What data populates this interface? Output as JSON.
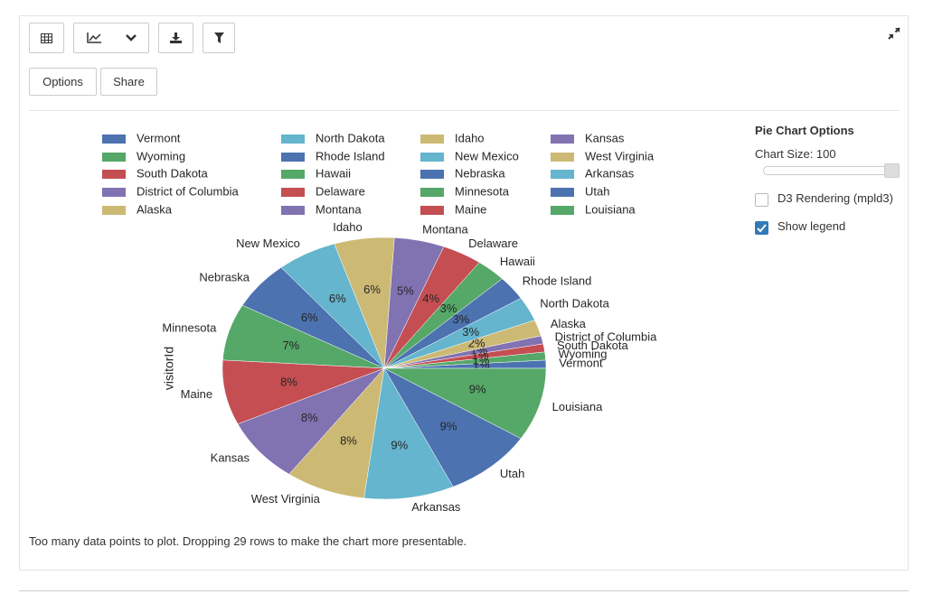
{
  "toolbar": {
    "options": "Options",
    "share": "Share"
  },
  "chart_data": {
    "type": "pie",
    "y_label": "visitorId",
    "categories": [
      "Vermont",
      "Wyoming",
      "South Dakota",
      "District of Columbia",
      "Alaska",
      "North Dakota",
      "Rhode Island",
      "Hawaii",
      "Delaware",
      "Montana",
      "Idaho",
      "New Mexico",
      "Nebraska",
      "Minnesota",
      "Maine",
      "Kansas",
      "West Virginia",
      "Arkansas",
      "Utah",
      "Louisiana"
    ],
    "values": [
      1,
      1,
      1,
      1,
      2,
      3,
      3,
      3,
      4,
      5,
      6,
      6,
      6,
      7,
      8,
      8,
      8,
      9,
      9,
      9
    ],
    "value_labels": [
      "1%",
      "1%",
      "1%",
      "1%",
      "2%",
      "3%",
      "3%",
      "3%",
      "4%",
      "5%",
      "6%",
      "6%",
      "6%",
      "7%",
      "8%",
      "8%",
      "8%",
      "9%",
      "9%",
      "9%"
    ],
    "colors": [
      "#4c72b0",
      "#55a868",
      "#c44e52",
      "#8172b2",
      "#ccb974",
      "#64b5cd",
      "#4c72b0",
      "#55a868",
      "#c44e52",
      "#8172b2",
      "#ccb974",
      "#64b5cd",
      "#4c72b0",
      "#55a868",
      "#c44e52",
      "#8172b2",
      "#ccb974",
      "#64b5cd",
      "#4c72b0",
      "#55a868"
    ],
    "legend": true
  },
  "options_panel": {
    "title": "Pie Chart Options",
    "chart_size": "Chart Size: 100",
    "d3_rendering": "D3 Rendering (mpld3)",
    "d3_checked": false,
    "show_legend": "Show legend",
    "legend_checked": true
  },
  "footer": "Too many data points to plot. Dropping 29 rows to make the chart more presentable."
}
